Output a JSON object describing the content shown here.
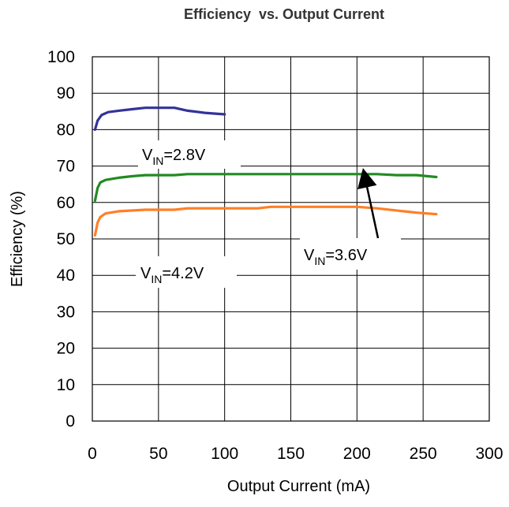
{
  "chart_data": {
    "type": "line",
    "title": "Efficiency  vs. Output Current",
    "xlabel": "Output Current (mA)",
    "ylabel": "Efficiency (%)",
    "xlim": [
      0,
      300
    ],
    "ylim": [
      0,
      100
    ],
    "x_ticks": [
      "0",
      "50",
      "100",
      "150",
      "200",
      "250",
      "300"
    ],
    "y_ticks": [
      "0",
      "10",
      "20",
      "30",
      "40",
      "50",
      "60",
      "70",
      "80",
      "90",
      "100"
    ],
    "grid": true,
    "series": [
      {
        "label_main": "V",
        "label_sub": "IN",
        "label_rest": "=2.8V",
        "color": "#333399",
        "x": [
          2,
          4,
          7,
          12,
          20,
          30,
          40,
          50,
          62,
          72,
          85,
          100
        ],
        "y": [
          80,
          82.5,
          84,
          84.8,
          85.2,
          85.6,
          86,
          86,
          86,
          85.2,
          84.6,
          84.2
        ]
      },
      {
        "label_main": "V",
        "label_sub": "IN",
        "label_rest": "=3.6V",
        "color": "#228B22",
        "x": [
          2,
          4,
          6,
          10,
          20,
          30,
          40,
          62,
          72,
          100,
          150,
          200,
          215,
          230,
          245,
          260
        ],
        "y": [
          60.5,
          64,
          65.5,
          66.2,
          66.8,
          67.2,
          67.5,
          67.5,
          67.8,
          67.8,
          67.8,
          67.8,
          67.8,
          67.5,
          67.5,
          67
        ]
      },
      {
        "label_main": "V",
        "label_sub": "IN",
        "label_rest": "=4.2V",
        "color": "#FF7F27",
        "x": [
          2,
          4,
          6,
          10,
          20,
          30,
          40,
          62,
          72,
          100,
          125,
          135,
          150,
          200,
          215,
          235,
          245,
          260
        ],
        "y": [
          51,
          54.5,
          56,
          57,
          57.6,
          57.8,
          58,
          58,
          58.4,
          58.4,
          58.4,
          58.8,
          58.8,
          58.8,
          58.4,
          57.6,
          57.2,
          56.8
        ]
      }
    ]
  }
}
